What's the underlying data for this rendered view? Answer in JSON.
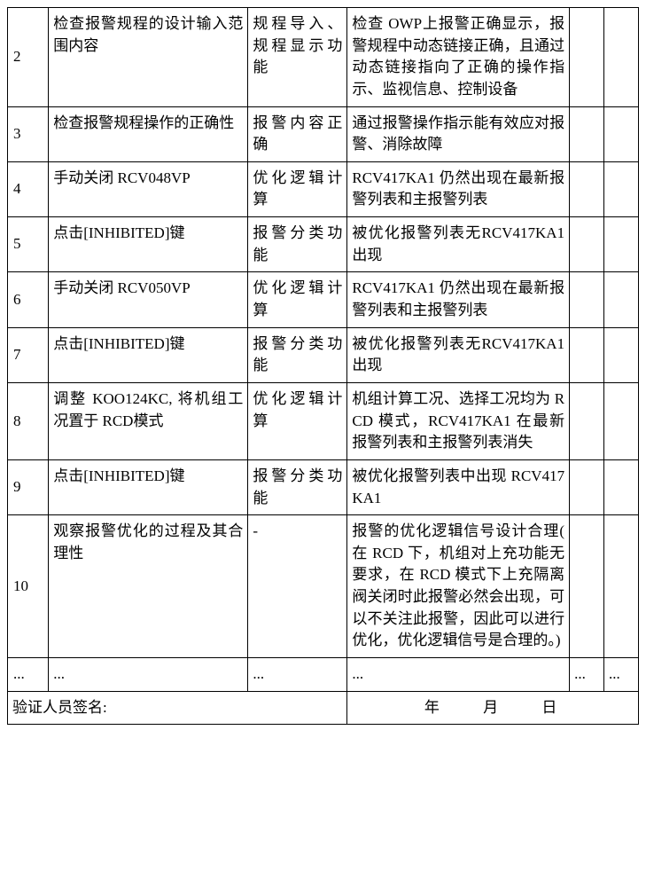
{
  "rows": [
    {
      "num": "2",
      "a": "检查报警规程的设计输入范围内容",
      "b": "规程导入、规程显示功能",
      "c": "检查 OWP上报警正确显示，报警规程中动态链接正确，且通过动态链接指向了正确的操作指示、监视信息、控制设备",
      "d": "",
      "e": ""
    },
    {
      "num": "3",
      "a": "检查报警规程操作的正确性",
      "b": "报警内容正确",
      "c": "通过报警操作指示能有效应对报警、消除故障",
      "d": "",
      "e": ""
    },
    {
      "num": "4",
      "a": "手动关闭 RCV048VP",
      "b": "优化逻辑计算",
      "c": "RCV417KA1  仍然出现在最新报警列表和主报警列表",
      "d": "",
      "e": ""
    },
    {
      "num": "5",
      "a": "点击[INHIBITED]键",
      "b": "报警分类功能",
      "c": "被优化报警列表无RCV417KA1 出现",
      "d": "",
      "e": ""
    },
    {
      "num": "6",
      "a": "手动关闭 RCV050VP",
      "b": "优化逻辑计算",
      "c": "RCV417KA1  仍然出现在最新报警列表和主报警列表",
      "d": "",
      "e": ""
    },
    {
      "num": "7",
      "a": "点击[INHIBITED]键",
      "b": "报警分类功能",
      "c": "被优化报警列表无RCV417KA1 出现",
      "d": "",
      "e": ""
    },
    {
      "num": "8",
      "a": "调整 KOO124KC, 将机组工况置于 RCD模式",
      "b": "优化逻辑计算",
      "c": "机组计算工况、选择工况均为 RCD 模式，RCV417KA1  在最新报警列表和主报警列表消失",
      "d": "",
      "e": ""
    },
    {
      "num": "9",
      "a": "点击[INHIBITED]键",
      "b": "报警分类功能",
      "c": "被优化报警列表中出现 RCV417KA1",
      "d": "",
      "e": ""
    },
    {
      "num": "10",
      "a": "观察报警优化的过程及其合理性",
      "b": "-",
      "c": "报警的优化逻辑信号设计合理( 在 RCD 下，机组对上充功能无要求，在 RCD 模式下上充隔离阀关闭时此报警必然会出现，可以不关注此报警，因此可以进行优化，优化逻辑信号是合理的。)",
      "d": "",
      "e": ""
    },
    {
      "num": "...",
      "a": "...",
      "b": "...",
      "c": "...",
      "d": "...",
      "e": "..."
    }
  ],
  "footer": {
    "signature_label": "验证人员签名:",
    "date_fields": "年　　月　　日"
  }
}
